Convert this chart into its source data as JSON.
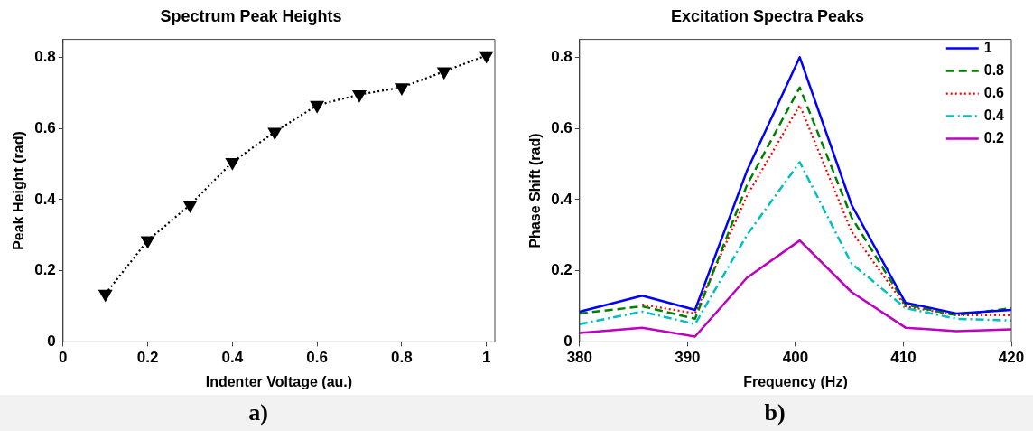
{
  "chart_data": [
    {
      "type": "line",
      "title": "Spectrum Peak Heights",
      "xlabel": "Indenter Voltage (au.)",
      "ylabel": "Peak Height (rad)",
      "x": [
        0.1,
        0.2,
        0.3,
        0.4,
        0.5,
        0.6,
        0.7,
        0.8,
        0.9,
        1
      ],
      "series": [
        {
          "color": "#000000",
          "values": [
            0.135,
            0.285,
            0.385,
            0.505,
            0.59,
            0.665,
            0.695,
            0.715,
            0.76,
            0.805
          ]
        }
      ],
      "marker": "triangle",
      "line_style": "dotted",
      "xlim": [
        0,
        1.02
      ],
      "xticks": [
        0,
        0.2,
        0.4,
        0.6,
        0.8,
        1
      ],
      "ylim": [
        0,
        0.85
      ],
      "yticks": [
        0,
        0.2,
        0.4,
        0.6,
        0.8
      ],
      "annotations": [
        "a)"
      ]
    },
    {
      "type": "line",
      "title": "Excitation Spectra Peaks",
      "xlabel": "Frequency (Hz)",
      "ylabel": "Phase Shift (rad)",
      "x": [
        380,
        385.8,
        390.7,
        395.5,
        400.4,
        405.2,
        410.2,
        414.9,
        420
      ],
      "series": [
        {
          "name": "1",
          "color": "#0000ff",
          "line_style": "solid",
          "values": [
            0.085,
            0.13,
            0.09,
            0.48,
            0.8,
            0.385,
            0.11,
            0.08,
            0.09
          ]
        },
        {
          "name": "0.8",
          "color": "#008000",
          "line_style": "dashed",
          "values": [
            0.08,
            0.1,
            0.065,
            0.44,
            0.715,
            0.35,
            0.105,
            0.075,
            0.095
          ]
        },
        {
          "name": "0.6",
          "color": "#ff0000",
          "line_style": "dotted",
          "values": [
            null,
            0.105,
            0.08,
            0.41,
            0.665,
            0.31,
            0.1,
            0.075,
            0.075
          ]
        },
        {
          "name": "0.4",
          "color": "#00bfbf",
          "line_style": "dashdot",
          "values": [
            0.05,
            0.085,
            0.05,
            0.3,
            0.505,
            0.22,
            0.095,
            0.065,
            0.06
          ]
        },
        {
          "name": "0.2",
          "color": "#bf00bf",
          "line_style": "solid",
          "values": [
            0.025,
            0.04,
            0.015,
            0.18,
            0.285,
            0.14,
            0.04,
            0.03,
            0.035
          ]
        }
      ],
      "marker": "none",
      "legend": "top right",
      "xlim": [
        380,
        420
      ],
      "xticks": [
        380,
        390,
        400,
        410,
        420
      ],
      "ylim": [
        0,
        0.85
      ],
      "yticks": [
        0,
        0.2,
        0.4,
        0.6,
        0.8
      ],
      "annotations": [
        "b)"
      ]
    }
  ]
}
